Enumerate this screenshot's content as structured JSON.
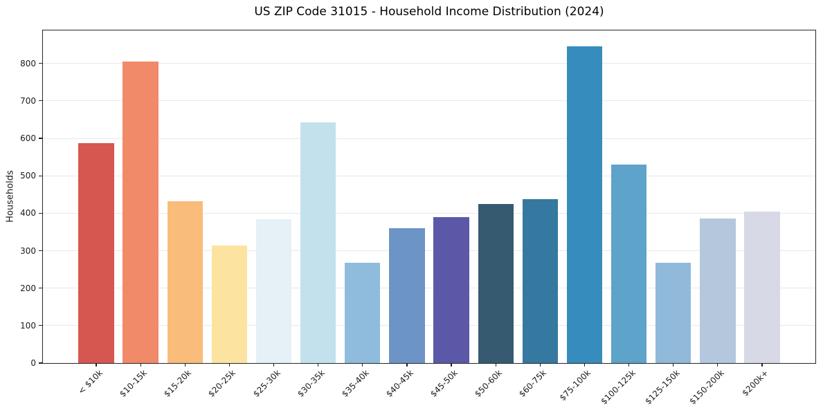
{
  "chart_data": {
    "type": "bar",
    "title": "US ZIP Code 31015 - Household Income Distribution (2024)",
    "xlabel": "",
    "ylabel": "Households",
    "categories": [
      "< $10k",
      "$10-15k",
      "$15-20k",
      "$20-25k",
      "$25-30k",
      "$30-35k",
      "$35-40k",
      "$40-45k",
      "$45-50k",
      "$50-60k",
      "$60-75k",
      "$75-100k",
      "$100-125k",
      "$125-150k",
      "$150-200k",
      "$200k+"
    ],
    "values": [
      587,
      805,
      432,
      313,
      384,
      642,
      268,
      360,
      390,
      424,
      438,
      845,
      529,
      268,
      385,
      404
    ],
    "bar_colors": [
      "#d6574f",
      "#f18a69",
      "#fabc7a",
      "#fce3a0",
      "#e5f1f6",
      "#c3e1ed",
      "#8fbcdc",
      "#6c94c6",
      "#5c58a8",
      "#365a70",
      "#3578a0",
      "#368cbd",
      "#5ea3c9",
      "#90b9da",
      "#b4c7dd",
      "#d7d9e6"
    ],
    "ylim": [
      0,
      888
    ],
    "yticks": [
      0,
      100,
      200,
      300,
      400,
      500,
      600,
      700,
      800
    ],
    "grid": "horizontal",
    "gridline_color": "#e8e8ec",
    "background_color": "#ffffff",
    "spine_color": "#262626",
    "x_tick_label_rotation": 45,
    "legend": "none"
  }
}
